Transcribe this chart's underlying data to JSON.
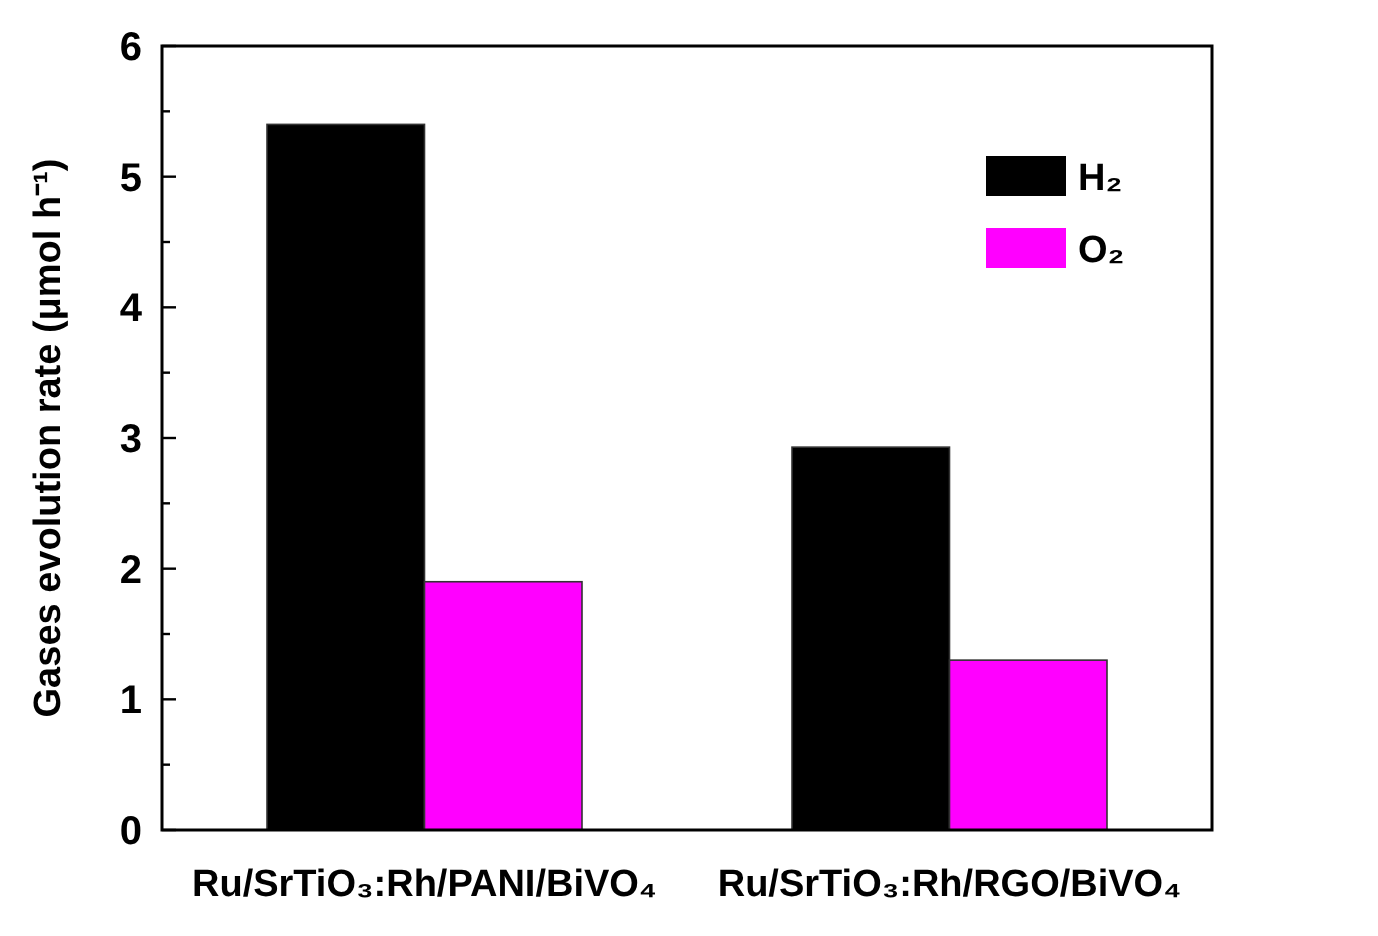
{
  "chart_data": {
    "type": "bar",
    "ylabel": "Gases evolution rate (μmol h⁻¹)",
    "categories": [
      "Ru/SrTiO₃:Rh/PANI/BiVO₄",
      "Ru/SrTiO₃:Rh/RGO/BiVO₄"
    ],
    "series": [
      {
        "name": "H₂",
        "color": "#000000",
        "values": [
          5.4,
          2.93
        ]
      },
      {
        "name": "O₂",
        "color": "#ff00ff",
        "values": [
          1.9,
          1.3
        ]
      }
    ],
    "ylim": [
      0,
      6
    ],
    "yticks": [
      0,
      {
        "value": 0.5,
        "label": null
      },
      1,
      {
        "value": 1.5,
        "label": null
      },
      2,
      {
        "value": 2.5,
        "label": null
      },
      3,
      {
        "value": 3.5,
        "label": null
      },
      4,
      {
        "value": 4.5,
        "label": null
      },
      5,
      {
        "value": 5.5,
        "label": null
      },
      6
    ],
    "grid": false,
    "legend": "top right"
  }
}
